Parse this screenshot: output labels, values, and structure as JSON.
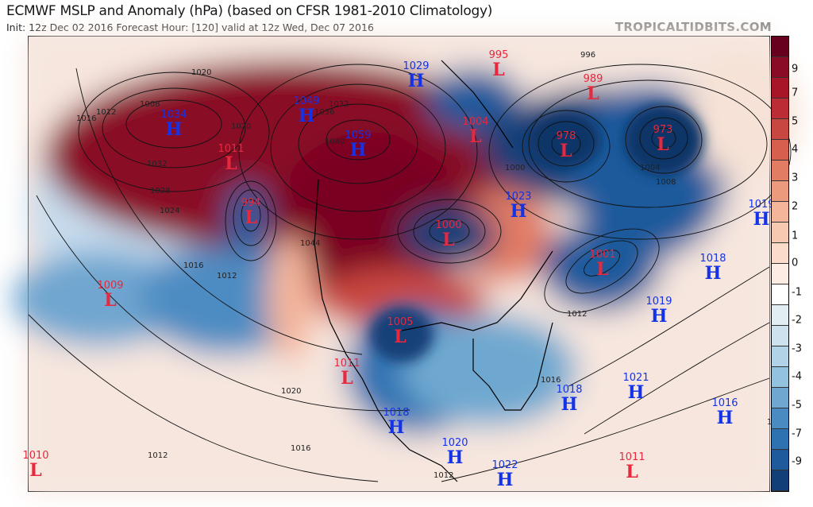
{
  "header": {
    "title": "ECMWF MSLP and Anomaly (hPa) (based on CFSR 1981-2010 Climatology)",
    "subtitle": "Init: 12z Dec 02 2016   Forecast Hour: [120]   valid at 12z Wed, Dec 07 2016",
    "brand": "TROPICALTIDBITS.COM"
  },
  "colorbar": {
    "tick_labels": [
      "9",
      "7",
      "5",
      "4",
      "3",
      "2",
      "1",
      "0",
      "-1",
      "-2",
      "-3",
      "-4",
      "-5",
      "-7",
      "-9"
    ],
    "colors": [
      "#67001f",
      "#8a0b25",
      "#a81529",
      "#bc2c34",
      "#c94741",
      "#d6604d",
      "#e27c63",
      "#ec9a7d",
      "#f4b59a",
      "#f8c9b1",
      "#fbdcca",
      "#fcece3",
      "#ffffff",
      "#e1edf3",
      "#cde2ee",
      "#b2d3e7",
      "#93c2de",
      "#6ea8d0",
      "#4a8cc1",
      "#2f72b2",
      "#1f5a9c",
      "#123f78"
    ]
  },
  "pressure_centers": [
    {
      "type": "H",
      "value": "1034"
    },
    {
      "type": "H",
      "value": "1049"
    },
    {
      "type": "H",
      "value": "1029"
    },
    {
      "type": "H",
      "value": "1059"
    },
    {
      "type": "H",
      "value": "1023"
    },
    {
      "type": "H",
      "value": "1019"
    },
    {
      "type": "H",
      "value": "1018"
    },
    {
      "type": "H",
      "value": "1019"
    },
    {
      "type": "H",
      "value": "1021"
    },
    {
      "type": "H",
      "value": "1018"
    },
    {
      "type": "H",
      "value": "1016"
    },
    {
      "type": "H",
      "value": "1018"
    },
    {
      "type": "H",
      "value": "1020"
    },
    {
      "type": "H",
      "value": "1022"
    },
    {
      "type": "L",
      "value": "995"
    },
    {
      "type": "L",
      "value": "989"
    },
    {
      "type": "L",
      "value": "1004"
    },
    {
      "type": "L",
      "value": "978"
    },
    {
      "type": "L",
      "value": "973"
    },
    {
      "type": "L",
      "value": "1011"
    },
    {
      "type": "L",
      "value": "994"
    },
    {
      "type": "L",
      "value": "1000"
    },
    {
      "type": "L",
      "value": "1001"
    },
    {
      "type": "L",
      "value": "1009"
    },
    {
      "type": "L",
      "value": "1005"
    },
    {
      "type": "L",
      "value": "1011"
    },
    {
      "type": "L",
      "value": "1010"
    },
    {
      "type": "L",
      "value": "1011"
    }
  ],
  "contour_labels": [
    "1020",
    "1016",
    "1012",
    "1008",
    "1032",
    "1028",
    "1024",
    "1036",
    "1032",
    "1044",
    "1040",
    "1000",
    "1004",
    "1008",
    "1012",
    "1016",
    "1020",
    "1016",
    "1012",
    "1016",
    "1020",
    "1016",
    "1012",
    "1012",
    "996"
  ]
}
